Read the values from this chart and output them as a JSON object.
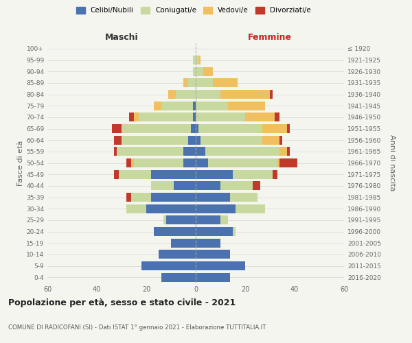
{
  "age_groups": [
    "0-4",
    "5-9",
    "10-14",
    "15-19",
    "20-24",
    "25-29",
    "30-34",
    "35-39",
    "40-44",
    "45-49",
    "50-54",
    "55-59",
    "60-64",
    "65-69",
    "70-74",
    "75-79",
    "80-84",
    "85-89",
    "90-94",
    "95-99",
    "100+"
  ],
  "birth_years": [
    "2016-2020",
    "2011-2015",
    "2006-2010",
    "2001-2005",
    "1996-2000",
    "1991-1995",
    "1986-1990",
    "1981-1985",
    "1976-1980",
    "1971-1975",
    "1966-1970",
    "1961-1965",
    "1956-1960",
    "1951-1955",
    "1946-1950",
    "1941-1945",
    "1936-1940",
    "1931-1935",
    "1926-1930",
    "1921-1925",
    "≤ 1920"
  ],
  "male_celibi": [
    14,
    22,
    15,
    10,
    17,
    12,
    20,
    18,
    9,
    18,
    5,
    5,
    3,
    2,
    1,
    1,
    0,
    0,
    0,
    0,
    0
  ],
  "male_coniugati": [
    0,
    0,
    0,
    0,
    0,
    1,
    8,
    8,
    9,
    13,
    20,
    27,
    27,
    28,
    22,
    13,
    8,
    3,
    1,
    1,
    0
  ],
  "male_vedovi": [
    0,
    0,
    0,
    0,
    0,
    0,
    0,
    0,
    0,
    0,
    1,
    0,
    0,
    0,
    2,
    3,
    3,
    2,
    0,
    0,
    0
  ],
  "male_divorziati": [
    0,
    0,
    0,
    0,
    0,
    0,
    0,
    2,
    0,
    2,
    2,
    1,
    3,
    4,
    2,
    0,
    0,
    0,
    0,
    0,
    0
  ],
  "female_nubili": [
    14,
    20,
    14,
    10,
    15,
    10,
    16,
    14,
    10,
    15,
    5,
    4,
    2,
    1,
    0,
    0,
    0,
    0,
    0,
    0,
    0
  ],
  "female_coniugate": [
    0,
    0,
    0,
    0,
    1,
    3,
    12,
    11,
    13,
    16,
    28,
    30,
    25,
    26,
    20,
    13,
    10,
    7,
    3,
    1,
    0
  ],
  "female_vedove": [
    0,
    0,
    0,
    0,
    0,
    0,
    0,
    0,
    0,
    0,
    1,
    3,
    7,
    10,
    12,
    15,
    20,
    10,
    4,
    1,
    0
  ],
  "female_divorziate": [
    0,
    0,
    0,
    0,
    0,
    0,
    0,
    0,
    3,
    2,
    7,
    1,
    1,
    1,
    2,
    0,
    1,
    0,
    0,
    0,
    0
  ],
  "color_celibi": "#4a72b0",
  "color_coniugati": "#c8d9a0",
  "color_vedovi": "#f0c060",
  "color_divorziati": "#c0392b",
  "xlim": 60,
  "title": "Popolazione per età, sesso e stato civile - 2021",
  "subtitle": "COMUNE DI RADICOFANI (SI) - Dati ISTAT 1° gennaio 2021 - Elaborazione TUTTITALIA.IT",
  "ylabel": "Fasce di età",
  "ylabel_right": "Anni di nascita",
  "label_maschi": "Maschi",
  "label_femmine": "Femmine",
  "bg_color": "#f5f5f0",
  "legend_labels": [
    "Celibi/Nubili",
    "Coniugati/e",
    "Vedovi/e",
    "Divorziati/e"
  ]
}
